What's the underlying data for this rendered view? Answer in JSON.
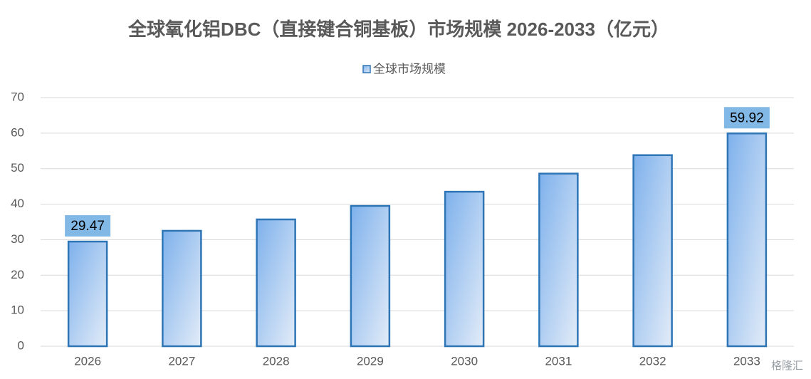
{
  "chart_data": {
    "type": "bar",
    "title": "全球氧化铝DBC（直接键合铜基板）市场规模 2026-2033（亿元）",
    "categories": [
      "2026",
      "2027",
      "2028",
      "2029",
      "2030",
      "2031",
      "2032",
      "2033"
    ],
    "series": [
      {
        "name": "全球市场规模",
        "color": "#2e75b6",
        "values": [
          29.47,
          32.5,
          35.7,
          39.5,
          43.5,
          48.6,
          53.8,
          59.92
        ],
        "value_labels": [
          "29.47",
          null,
          null,
          null,
          null,
          null,
          null,
          "59.92"
        ]
      }
    ],
    "ylim": [
      0,
      70
    ],
    "yticks": [
      0,
      10,
      20,
      30,
      40,
      50,
      60,
      70
    ],
    "grid": true,
    "legend": "top",
    "watermark": "格隆汇"
  }
}
